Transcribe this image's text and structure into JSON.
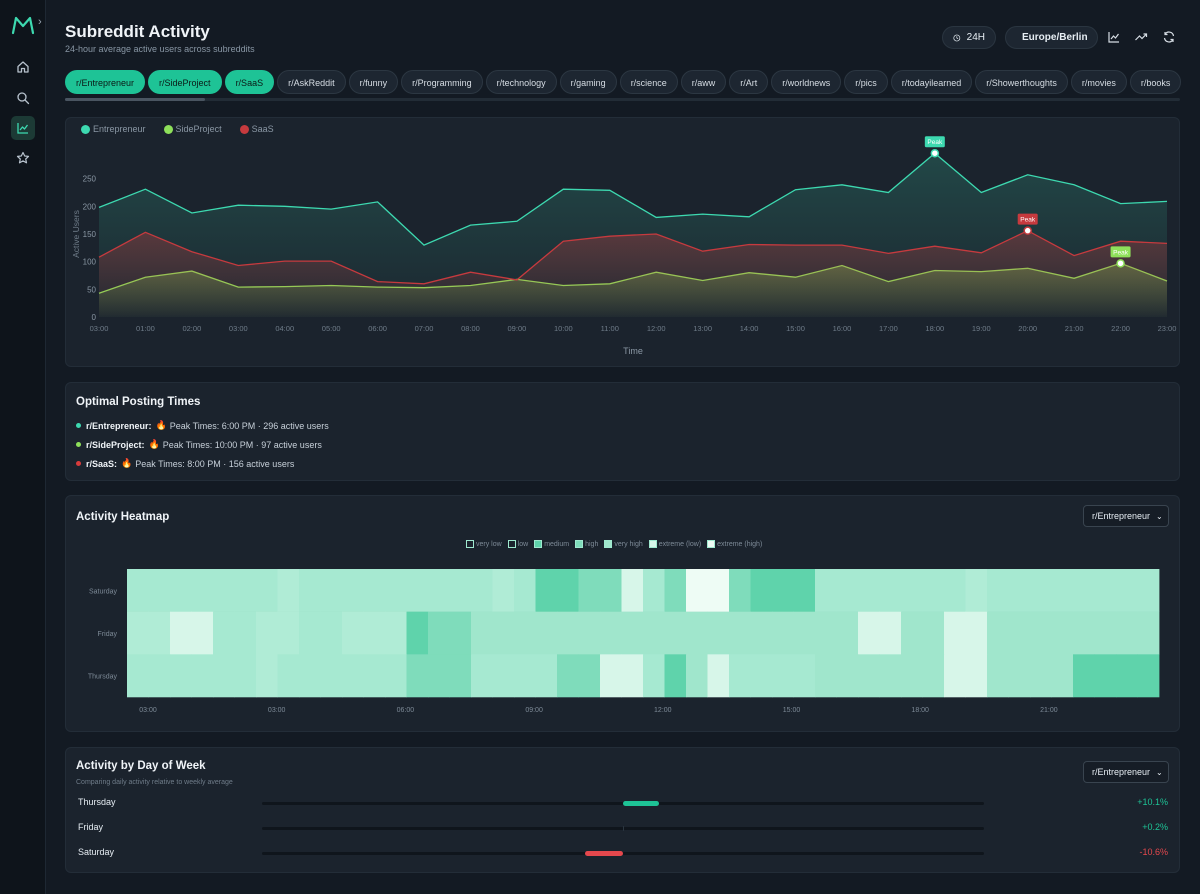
{
  "header": {
    "title": "Subreddit Activity",
    "subtitle": "24-hour average active users across subreddits",
    "range_label": "24H",
    "timezone_label": "Europe/Berlin"
  },
  "subreddits": [
    {
      "label": "r/Entrepreneur",
      "selected": true
    },
    {
      "label": "r/SideProject",
      "selected": true
    },
    {
      "label": "r/SaaS",
      "selected": true
    },
    {
      "label": "r/AskReddit",
      "selected": false
    },
    {
      "label": "r/funny",
      "selected": false
    },
    {
      "label": "r/Programming",
      "selected": false
    },
    {
      "label": "r/technology",
      "selected": false
    },
    {
      "label": "r/gaming",
      "selected": false
    },
    {
      "label": "r/science",
      "selected": false
    },
    {
      "label": "r/aww",
      "selected": false
    },
    {
      "label": "r/Art",
      "selected": false
    },
    {
      "label": "r/worldnews",
      "selected": false
    },
    {
      "label": "r/pics",
      "selected": false
    },
    {
      "label": "r/todayilearned",
      "selected": false
    },
    {
      "label": "r/Showerthoughts",
      "selected": false
    },
    {
      "label": "r/movies",
      "selected": false
    },
    {
      "label": "r/books",
      "selected": false
    }
  ],
  "chart_data": [
    {
      "type": "area",
      "xlabel": "Time",
      "ylabel": "Active Users",
      "ylim": [
        0,
        300
      ],
      "yticks": [
        0,
        50,
        100,
        150,
        200,
        250
      ],
      "x": [
        "03:00",
        "01:00",
        "02:00",
        "03:00",
        "04:00",
        "05:00",
        "06:00",
        "07:00",
        "08:00",
        "09:00",
        "10:00",
        "11:00",
        "12:00",
        "13:00",
        "14:00",
        "15:00",
        "16:00",
        "17:00",
        "18:00",
        "19:00",
        "20:00",
        "21:00",
        "22:00",
        "23:00"
      ],
      "legend_position": "top-left",
      "grid": false,
      "peak_label": "Peak",
      "series": [
        {
          "name": "Entrepreneur",
          "color": "#3dd9b0",
          "values": [
            198,
            231,
            188,
            202,
            200,
            195,
            208,
            130,
            166,
            173,
            231,
            229,
            180,
            186,
            181,
            230,
            239,
            225,
            296,
            225,
            257,
            239,
            205,
            209
          ],
          "peak_index": 18
        },
        {
          "name": "SideProject",
          "color": "#8ee05a",
          "values": [
            43,
            72,
            83,
            54,
            55,
            57,
            54,
            53,
            57,
            68,
            57,
            60,
            81,
            66,
            80,
            72,
            93,
            64,
            84,
            82,
            88,
            70,
            97,
            65
          ],
          "peak_index": 22
        },
        {
          "name": "SaaS",
          "color": "#c63a3e",
          "values": [
            108,
            153,
            118,
            93,
            101,
            101,
            64,
            60,
            81,
            67,
            137,
            146,
            150,
            119,
            131,
            130,
            130,
            115,
            128,
            116,
            156,
            111,
            137,
            133
          ],
          "peak_index": 20
        }
      ]
    },
    {
      "type": "heatmap",
      "rows": [
        "Saturday",
        "Friday",
        "Thursday"
      ],
      "xticks": [
        "03:00",
        "03:00",
        "06:00",
        "09:00",
        "12:00",
        "15:00",
        "18:00",
        "21:00"
      ],
      "levels": [
        "very low",
        "low",
        "medium",
        "high",
        "very high",
        "extreme (low)",
        "extreme (high)"
      ],
      "level_colors": [
        "#b0ecd6",
        "#a6e9d1",
        "#5fd3ab",
        "#7fdcbb",
        "#a0e6cc",
        "#d7f6e9",
        "#eefcf5"
      ],
      "values": [
        [
          1,
          1,
          1,
          1,
          1,
          1,
          1,
          0,
          1,
          1,
          1,
          1,
          1,
          1,
          1,
          1,
          1,
          0,
          1,
          2,
          2,
          3,
          3,
          5,
          1,
          3,
          6,
          6,
          3,
          2,
          2,
          2,
          1,
          1,
          1,
          1,
          1,
          1,
          1,
          0,
          1,
          1,
          1,
          1,
          1,
          1,
          1,
          1
        ],
        [
          0,
          0,
          5,
          5,
          1,
          1,
          0,
          0,
          1,
          1,
          0,
          0,
          0,
          2,
          3,
          3,
          4,
          4,
          4,
          4,
          4,
          4,
          4,
          4,
          4,
          4,
          4,
          4,
          4,
          4,
          4,
          4,
          4,
          4,
          5,
          5,
          4,
          4,
          5,
          5,
          4,
          4,
          4,
          4,
          4,
          4,
          4,
          4
        ],
        [
          1,
          1,
          1,
          1,
          1,
          1,
          0,
          1,
          1,
          1,
          1,
          1,
          1,
          3,
          3,
          3,
          1,
          1,
          1,
          1,
          3,
          3,
          5,
          5,
          1,
          2,
          4,
          5,
          1,
          1,
          1,
          1,
          4,
          4,
          4,
          4,
          4,
          4,
          5,
          5,
          4,
          4,
          4,
          4,
          2,
          2,
          2,
          2
        ]
      ]
    },
    {
      "type": "bar",
      "categories": [
        "Thursday",
        "Friday",
        "Saturday"
      ],
      "values": [
        10.1,
        0.2,
        -10.6
      ],
      "unit": "%"
    }
  ],
  "posting": {
    "title": "Optimal Posting Times",
    "items": [
      {
        "name": "r/Entrepreneur:",
        "text": "Peak Times: 6:00 PM · 296 active users",
        "color": "#3dd9b0"
      },
      {
        "name": "r/SideProject:",
        "text": "Peak Times: 10:00 PM · 97 active users",
        "color": "#8ee05a"
      },
      {
        "name": "r/SaaS:",
        "text": "Peak Times: 8:00 PM · 156 active users",
        "color": "#d83b3b"
      }
    ]
  },
  "heatmap": {
    "title": "Activity Heatmap",
    "select_value": "r/Entrepreneur"
  },
  "dow": {
    "title": "Activity by Day of Week",
    "subtitle": "Comparing daily activity relative to weekly average",
    "select_value": "r/Entrepreneur",
    "rows": [
      {
        "day": "Thursday",
        "pct": "+10.1%",
        "color": "#1ec396",
        "value": 10.1
      },
      {
        "day": "Friday",
        "pct": "+0.2%",
        "color": "#1ec396",
        "value": 0.2
      },
      {
        "day": "Saturday",
        "pct": "-10.6%",
        "color": "#e5484d",
        "value": -10.6
      }
    ]
  }
}
